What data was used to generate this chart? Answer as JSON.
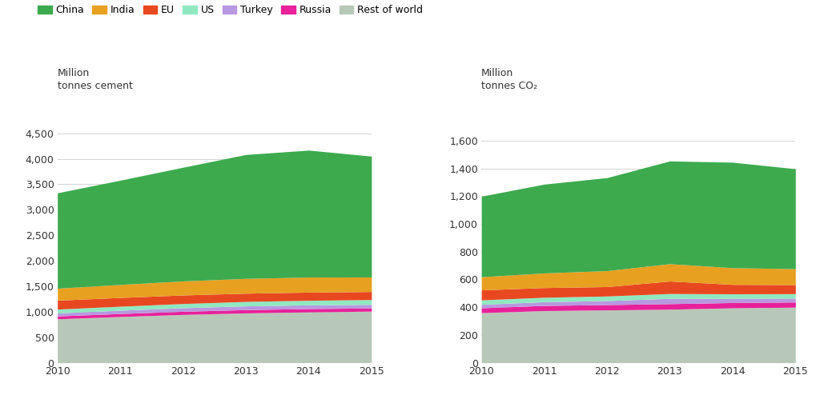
{
  "years": [
    2010,
    2011,
    2012,
    2013,
    2014,
    2015
  ],
  "colors": {
    "China": "#3daa4e",
    "India": "#e8a020",
    "EU": "#e84820",
    "US": "#90e8c0",
    "Turkey": "#b898e0",
    "Russia": "#e8209a",
    "Rest of world": "#b8c8b8"
  },
  "cement": {
    "Rest of world": [
      860,
      905,
      945,
      975,
      995,
      1010
    ],
    "Russia": [
      55,
      58,
      62,
      65,
      65,
      62
    ],
    "Turkey": [
      60,
      65,
      70,
      73,
      73,
      70
    ],
    "US": [
      75,
      78,
      82,
      87,
      90,
      95
    ],
    "EU": [
      175,
      172,
      168,
      162,
      160,
      158
    ],
    "India": [
      235,
      255,
      275,
      290,
      295,
      285
    ],
    "China": [
      1870,
      2045,
      2230,
      2430,
      2490,
      2370
    ]
  },
  "co2": {
    "Rest of world": [
      360,
      375,
      380,
      385,
      395,
      400
    ],
    "Russia": [
      35,
      37,
      38,
      40,
      38,
      37
    ],
    "Turkey": [
      25,
      27,
      29,
      38,
      30,
      28
    ],
    "US": [
      32,
      32,
      33,
      35,
      33,
      32
    ],
    "EU": [
      72,
      70,
      68,
      90,
      68,
      65
    ],
    "India": [
      95,
      105,
      115,
      125,
      120,
      115
    ],
    "China": [
      580,
      640,
      670,
      740,
      760,
      720
    ]
  },
  "legend_order": [
    "China",
    "India",
    "EU",
    "US",
    "Turkey",
    "Russia",
    "Rest of world"
  ],
  "ylabel_left": "Million\ntonnes cement",
  "ylabel_right": "Million\ntonnes CO₂",
  "ylim_left": [
    0,
    4900
  ],
  "ylim_right": [
    0,
    1800
  ],
  "yticks_left": [
    0,
    500,
    1000,
    1500,
    2000,
    2500,
    3000,
    3500,
    4000,
    4500
  ],
  "yticks_right": [
    0,
    200,
    400,
    600,
    800,
    1000,
    1200,
    1400,
    1600
  ],
  "bg_color": "#ffffff",
  "grid_color": "#cccccc",
  "font_color": "#333333"
}
